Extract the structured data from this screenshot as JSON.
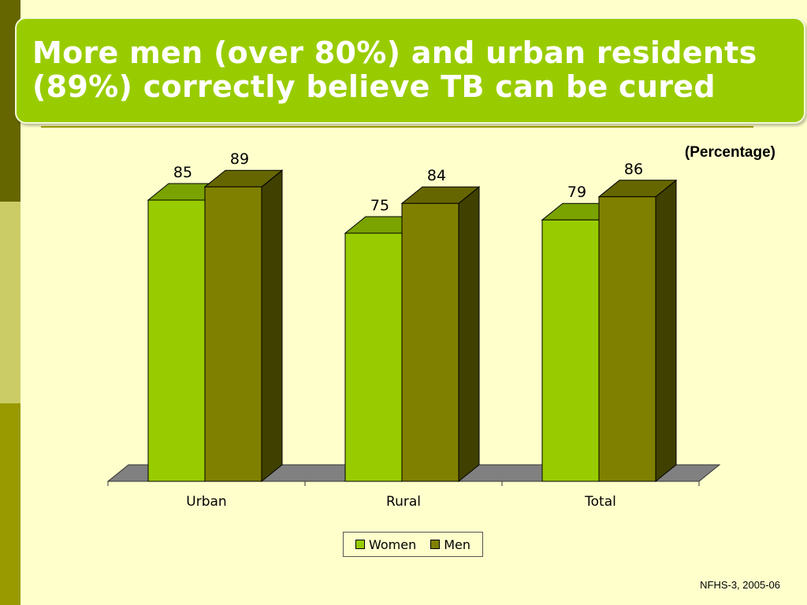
{
  "slide": {
    "title": "More men (over 80%) and urban residents (89%) correctly believe TB can be cured",
    "unit_label": "(Percentage)",
    "source": "NFHS-3, 2005-06"
  },
  "colors": {
    "women": "#99cc00",
    "men": "#808000",
    "floor": "#808080"
  },
  "chart_data": {
    "type": "bar",
    "categories": [
      "Urban",
      "Rural",
      "Total"
    ],
    "series": [
      {
        "name": "Women",
        "values": [
          85,
          75,
          79
        ]
      },
      {
        "name": "Men",
        "values": [
          89,
          84,
          86
        ]
      }
    ],
    "ylim": [
      0,
      100
    ],
    "legend": "bottom",
    "grid": false,
    "style": "3d-clustered-column"
  }
}
